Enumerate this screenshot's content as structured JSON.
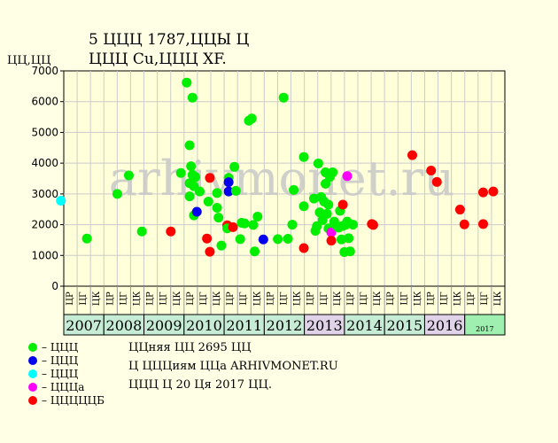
{
  "title_line1": "5 ЦЦЦ 1787,ЦЦЫ Ц",
  "title_line2": "ЦЦЦ Cu,ЦЦЦ XF.",
  "y_unit": "ЦЦ,ЦЦ",
  "watermark": "arhivmonet.ru",
  "legend": [
    {
      "label": "– ЦЦЦ",
      "color": "#00ee00"
    },
    {
      "label": "– ЦЦЦ",
      "color": "#0000ee"
    },
    {
      "label": "– ЦЦЦ",
      "color": "#00ffff"
    },
    {
      "label": "– ЦЦЦа",
      "color": "#ff00ff"
    },
    {
      "label": "– ЦЦЦЦЦБ",
      "color": "#ff0000"
    }
  ],
  "info_lines": [
    "ЦЦняя ЦЦ 2695 ЦЦ",
    "Ц ЦЦЦиям ЦЦа ARHIVMONET.RU",
    "ЦЦЦ Ц 20 Ця 2017 ЦЦ."
  ],
  "chart_data": {
    "type": "scatter",
    "ylim": [
      0,
      7000
    ],
    "yticks": [
      0,
      1000,
      2000,
      3000,
      4000,
      5000,
      6000,
      7000
    ],
    "years": [
      {
        "label": "2007",
        "color": "#c6ecd6"
      },
      {
        "label": "2008",
        "color": "#c6ecd6"
      },
      {
        "label": "2009",
        "color": "#c6ecd6"
      },
      {
        "label": "2010",
        "color": "#c6ecd6"
      },
      {
        "label": "2011",
        "color": "#c6ecd6"
      },
      {
        "label": "2012",
        "color": "#c6ecd6"
      },
      {
        "label": "2013",
        "color": "#e0d2e8"
      },
      {
        "label": "2014",
        "color": "#c6ecd6"
      },
      {
        "label": "2015",
        "color": "#c6ecd6"
      },
      {
        "label": "2016",
        "color": "#e0d2e8"
      },
      {
        "label": "2017",
        "color": "#9fefb0"
      }
    ],
    "subperiods": [
      "ЦР",
      "ЦГ",
      "ЦК"
    ],
    "x_min": 0,
    "x_max": 30.5,
    "points": [
      {
        "x": -0.2,
        "y": 2780,
        "c": "#00ffff"
      },
      {
        "x": 1.6,
        "y": 1550,
        "c": "#00ee00"
      },
      {
        "x": 3.7,
        "y": 3000,
        "c": "#00ee00"
      },
      {
        "x": 4.5,
        "y": 3600,
        "c": "#00ee00"
      },
      {
        "x": 5.4,
        "y": 1780,
        "c": "#00ee00"
      },
      {
        "x": 7.4,
        "y": 1780,
        "c": "#ff0000"
      },
      {
        "x": 8.1,
        "y": 3680,
        "c": "#00ee00"
      },
      {
        "x": 8.5,
        "y": 6620,
        "c": "#00ee00"
      },
      {
        "x": 8.7,
        "y": 4580,
        "c": "#00ee00"
      },
      {
        "x": 8.8,
        "y": 3900,
        "c": "#00ee00"
      },
      {
        "x": 8.9,
        "y": 6130,
        "c": "#00ee00"
      },
      {
        "x": 8.7,
        "y": 3350,
        "c": "#00ee00"
      },
      {
        "x": 8.9,
        "y": 3620,
        "c": "#00ee00"
      },
      {
        "x": 9.0,
        "y": 3250,
        "c": "#00ee00"
      },
      {
        "x": 9.1,
        "y": 3550,
        "c": "#00ee00"
      },
      {
        "x": 8.7,
        "y": 2920,
        "c": "#00ee00"
      },
      {
        "x": 9.0,
        "y": 2300,
        "c": "#00ee00"
      },
      {
        "x": 9.2,
        "y": 2420,
        "c": "#0000ee"
      },
      {
        "x": 9.4,
        "y": 3080,
        "c": "#00ee00"
      },
      {
        "x": 9.9,
        "y": 1550,
        "c": "#ff0000"
      },
      {
        "x": 10.0,
        "y": 2750,
        "c": "#00ee00"
      },
      {
        "x": 10.1,
        "y": 1120,
        "c": "#ff0000"
      },
      {
        "x": 10.1,
        "y": 3520,
        "c": "#ff0000"
      },
      {
        "x": 10.6,
        "y": 2550,
        "c": "#00ee00"
      },
      {
        "x": 10.6,
        "y": 3030,
        "c": "#00ee00"
      },
      {
        "x": 10.7,
        "y": 2230,
        "c": "#00ee00"
      },
      {
        "x": 10.9,
        "y": 1320,
        "c": "#00ee00"
      },
      {
        "x": 11.3,
        "y": 1980,
        "c": "#ff0000"
      },
      {
        "x": 11.3,
        "y": 1880,
        "c": "#00ee00"
      },
      {
        "x": 11.4,
        "y": 3520,
        "c": "#00ee00"
      },
      {
        "x": 11.4,
        "y": 3380,
        "c": "#0000ee"
      },
      {
        "x": 11.4,
        "y": 3080,
        "c": "#0000ee"
      },
      {
        "x": 11.7,
        "y": 1920,
        "c": "#ff0000"
      },
      {
        "x": 11.8,
        "y": 3880,
        "c": "#00ee00"
      },
      {
        "x": 11.9,
        "y": 3100,
        "c": "#00ee00"
      },
      {
        "x": 12.2,
        "y": 1530,
        "c": "#00ee00"
      },
      {
        "x": 12.3,
        "y": 2060,
        "c": "#00ee00"
      },
      {
        "x": 12.5,
        "y": 2040,
        "c": "#00ee00"
      },
      {
        "x": 12.8,
        "y": 5380,
        "c": "#00ee00"
      },
      {
        "x": 13.0,
        "y": 5450,
        "c": "#00ee00"
      },
      {
        "x": 13.1,
        "y": 1990,
        "c": "#00ee00"
      },
      {
        "x": 13.2,
        "y": 1130,
        "c": "#00ee00"
      },
      {
        "x": 13.4,
        "y": 2260,
        "c": "#00ee00"
      },
      {
        "x": 13.8,
        "y": 1520,
        "c": "#0000ee"
      },
      {
        "x": 14.8,
        "y": 1530,
        "c": "#00ee00"
      },
      {
        "x": 15.2,
        "y": 6130,
        "c": "#00ee00"
      },
      {
        "x": 15.5,
        "y": 1540,
        "c": "#00ee00"
      },
      {
        "x": 15.8,
        "y": 2000,
        "c": "#00ee00"
      },
      {
        "x": 15.9,
        "y": 3130,
        "c": "#00ee00"
      },
      {
        "x": 16.6,
        "y": 1240,
        "c": "#ff0000"
      },
      {
        "x": 16.6,
        "y": 4200,
        "c": "#00ee00"
      },
      {
        "x": 16.6,
        "y": 2600,
        "c": "#00ee00"
      },
      {
        "x": 17.3,
        "y": 2850,
        "c": "#00ee00"
      },
      {
        "x": 17.4,
        "y": 1800,
        "c": "#00ee00"
      },
      {
        "x": 17.5,
        "y": 1950,
        "c": "#00ee00"
      },
      {
        "x": 17.6,
        "y": 3990,
        "c": "#00ee00"
      },
      {
        "x": 17.7,
        "y": 2400,
        "c": "#00ee00"
      },
      {
        "x": 17.8,
        "y": 2900,
        "c": "#00ee00"
      },
      {
        "x": 17.9,
        "y": 2150,
        "c": "#00ee00"
      },
      {
        "x": 18.0,
        "y": 2750,
        "c": "#00ee00"
      },
      {
        "x": 18.1,
        "y": 3700,
        "c": "#00ee00"
      },
      {
        "x": 18.1,
        "y": 3330,
        "c": "#00ee00"
      },
      {
        "x": 18.2,
        "y": 2350,
        "c": "#00ee00"
      },
      {
        "x": 18.3,
        "y": 1880,
        "c": "#00ee00"
      },
      {
        "x": 18.3,
        "y": 2650,
        "c": "#00ee00"
      },
      {
        "x": 18.4,
        "y": 3550,
        "c": "#00ee00"
      },
      {
        "x": 18.5,
        "y": 1750,
        "c": "#ff00ff"
      },
      {
        "x": 18.5,
        "y": 1480,
        "c": "#ff0000"
      },
      {
        "x": 18.6,
        "y": 3700,
        "c": "#00ee00"
      },
      {
        "x": 18.7,
        "y": 2100,
        "c": "#00ee00"
      },
      {
        "x": 18.8,
        "y": 2000,
        "c": "#00ee00"
      },
      {
        "x": 19.0,
        "y": 1900,
        "c": "#00ee00"
      },
      {
        "x": 19.1,
        "y": 2450,
        "c": "#00ee00"
      },
      {
        "x": 19.2,
        "y": 1520,
        "c": "#00ee00"
      },
      {
        "x": 19.3,
        "y": 1960,
        "c": "#00ee00"
      },
      {
        "x": 19.3,
        "y": 2650,
        "c": "#ff0000"
      },
      {
        "x": 19.4,
        "y": 1110,
        "c": "#00ee00"
      },
      {
        "x": 19.5,
        "y": 2000,
        "c": "#00ee00"
      },
      {
        "x": 19.6,
        "y": 3580,
        "c": "#ff00ff"
      },
      {
        "x": 19.6,
        "y": 2100,
        "c": "#00ee00"
      },
      {
        "x": 19.7,
        "y": 1560,
        "c": "#00ee00"
      },
      {
        "x": 19.8,
        "y": 1130,
        "c": "#00ee00"
      },
      {
        "x": 20.0,
        "y": 2000,
        "c": "#00ee00"
      },
      {
        "x": 21.3,
        "y": 2020,
        "c": "#ff0000"
      },
      {
        "x": 21.4,
        "y": 1990,
        "c": "#ff0000"
      },
      {
        "x": 24.1,
        "y": 4260,
        "c": "#ff0000"
      },
      {
        "x": 25.4,
        "y": 3760,
        "c": "#ff0000"
      },
      {
        "x": 25.8,
        "y": 3390,
        "c": "#ff0000"
      },
      {
        "x": 27.4,
        "y": 2490,
        "c": "#ff0000"
      },
      {
        "x": 27.7,
        "y": 2010,
        "c": "#ff0000"
      },
      {
        "x": 29.0,
        "y": 3050,
        "c": "#ff0000"
      },
      {
        "x": 29.0,
        "y": 2020,
        "c": "#ff0000"
      },
      {
        "x": 29.7,
        "y": 3080,
        "c": "#ff0000"
      }
    ]
  }
}
